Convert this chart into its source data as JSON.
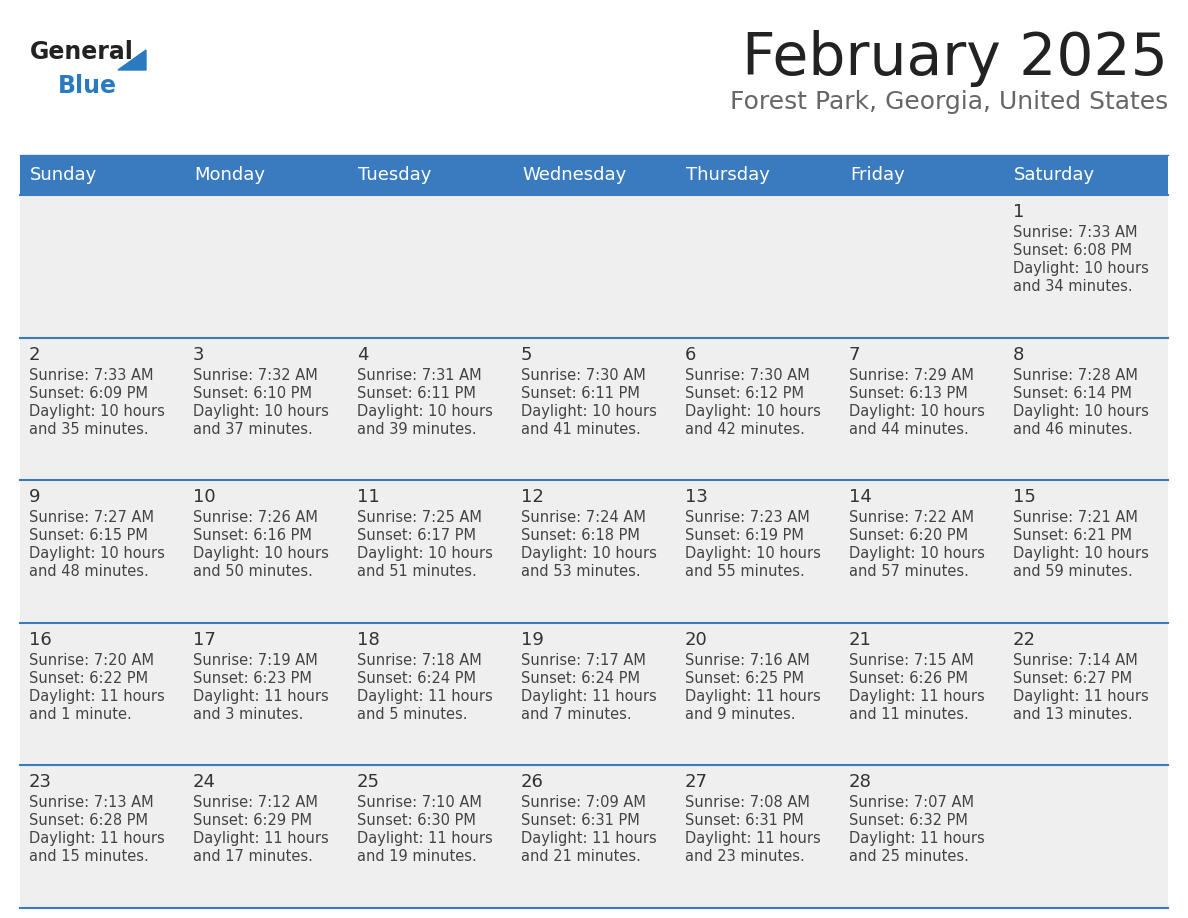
{
  "title": "February 2025",
  "subtitle": "Forest Park, Georgia, United States",
  "days_of_week": [
    "Sunday",
    "Monday",
    "Tuesday",
    "Wednesday",
    "Thursday",
    "Friday",
    "Saturday"
  ],
  "header_bg": "#3a7bbf",
  "header_text": "#ffffff",
  "cell_bg": "#efefef",
  "cell_bg_white": "#ffffff",
  "cell_border": "#3a7bbf",
  "day_num_color": "#333333",
  "info_text_color": "#444444",
  "title_color": "#222222",
  "subtitle_color": "#666666",
  "logo_general_color": "#222222",
  "logo_blue_color": "#2a7abf",
  "calendar_data": [
    {
      "day": 1,
      "col": 6,
      "row": 0,
      "sunrise": "7:33 AM",
      "sunset": "6:08 PM",
      "daylight": "10 hours and 34 minutes."
    },
    {
      "day": 2,
      "col": 0,
      "row": 1,
      "sunrise": "7:33 AM",
      "sunset": "6:09 PM",
      "daylight": "10 hours and 35 minutes."
    },
    {
      "day": 3,
      "col": 1,
      "row": 1,
      "sunrise": "7:32 AM",
      "sunset": "6:10 PM",
      "daylight": "10 hours and 37 minutes."
    },
    {
      "day": 4,
      "col": 2,
      "row": 1,
      "sunrise": "7:31 AM",
      "sunset": "6:11 PM",
      "daylight": "10 hours and 39 minutes."
    },
    {
      "day": 5,
      "col": 3,
      "row": 1,
      "sunrise": "7:30 AM",
      "sunset": "6:11 PM",
      "daylight": "10 hours and 41 minutes."
    },
    {
      "day": 6,
      "col": 4,
      "row": 1,
      "sunrise": "7:30 AM",
      "sunset": "6:12 PM",
      "daylight": "10 hours and 42 minutes."
    },
    {
      "day": 7,
      "col": 5,
      "row": 1,
      "sunrise": "7:29 AM",
      "sunset": "6:13 PM",
      "daylight": "10 hours and 44 minutes."
    },
    {
      "day": 8,
      "col": 6,
      "row": 1,
      "sunrise": "7:28 AM",
      "sunset": "6:14 PM",
      "daylight": "10 hours and 46 minutes."
    },
    {
      "day": 9,
      "col": 0,
      "row": 2,
      "sunrise": "7:27 AM",
      "sunset": "6:15 PM",
      "daylight": "10 hours and 48 minutes."
    },
    {
      "day": 10,
      "col": 1,
      "row": 2,
      "sunrise": "7:26 AM",
      "sunset": "6:16 PM",
      "daylight": "10 hours and 50 minutes."
    },
    {
      "day": 11,
      "col": 2,
      "row": 2,
      "sunrise": "7:25 AM",
      "sunset": "6:17 PM",
      "daylight": "10 hours and 51 minutes."
    },
    {
      "day": 12,
      "col": 3,
      "row": 2,
      "sunrise": "7:24 AM",
      "sunset": "6:18 PM",
      "daylight": "10 hours and 53 minutes."
    },
    {
      "day": 13,
      "col": 4,
      "row": 2,
      "sunrise": "7:23 AM",
      "sunset": "6:19 PM",
      "daylight": "10 hours and 55 minutes."
    },
    {
      "day": 14,
      "col": 5,
      "row": 2,
      "sunrise": "7:22 AM",
      "sunset": "6:20 PM",
      "daylight": "10 hours and 57 minutes."
    },
    {
      "day": 15,
      "col": 6,
      "row": 2,
      "sunrise": "7:21 AM",
      "sunset": "6:21 PM",
      "daylight": "10 hours and 59 minutes."
    },
    {
      "day": 16,
      "col": 0,
      "row": 3,
      "sunrise": "7:20 AM",
      "sunset": "6:22 PM",
      "daylight": "11 hours and 1 minute."
    },
    {
      "day": 17,
      "col": 1,
      "row": 3,
      "sunrise": "7:19 AM",
      "sunset": "6:23 PM",
      "daylight": "11 hours and 3 minutes."
    },
    {
      "day": 18,
      "col": 2,
      "row": 3,
      "sunrise": "7:18 AM",
      "sunset": "6:24 PM",
      "daylight": "11 hours and 5 minutes."
    },
    {
      "day": 19,
      "col": 3,
      "row": 3,
      "sunrise": "7:17 AM",
      "sunset": "6:24 PM",
      "daylight": "11 hours and 7 minutes."
    },
    {
      "day": 20,
      "col": 4,
      "row": 3,
      "sunrise": "7:16 AM",
      "sunset": "6:25 PM",
      "daylight": "11 hours and 9 minutes."
    },
    {
      "day": 21,
      "col": 5,
      "row": 3,
      "sunrise": "7:15 AM",
      "sunset": "6:26 PM",
      "daylight": "11 hours and 11 minutes."
    },
    {
      "day": 22,
      "col": 6,
      "row": 3,
      "sunrise": "7:14 AM",
      "sunset": "6:27 PM",
      "daylight": "11 hours and 13 minutes."
    },
    {
      "day": 23,
      "col": 0,
      "row": 4,
      "sunrise": "7:13 AM",
      "sunset": "6:28 PM",
      "daylight": "11 hours and 15 minutes."
    },
    {
      "day": 24,
      "col": 1,
      "row": 4,
      "sunrise": "7:12 AM",
      "sunset": "6:29 PM",
      "daylight": "11 hours and 17 minutes."
    },
    {
      "day": 25,
      "col": 2,
      "row": 4,
      "sunrise": "7:10 AM",
      "sunset": "6:30 PM",
      "daylight": "11 hours and 19 minutes."
    },
    {
      "day": 26,
      "col": 3,
      "row": 4,
      "sunrise": "7:09 AM",
      "sunset": "6:31 PM",
      "daylight": "11 hours and 21 minutes."
    },
    {
      "day": 27,
      "col": 4,
      "row": 4,
      "sunrise": "7:08 AM",
      "sunset": "6:31 PM",
      "daylight": "11 hours and 23 minutes."
    },
    {
      "day": 28,
      "col": 5,
      "row": 4,
      "sunrise": "7:07 AM",
      "sunset": "6:32 PM",
      "daylight": "11 hours and 25 minutes."
    }
  ]
}
